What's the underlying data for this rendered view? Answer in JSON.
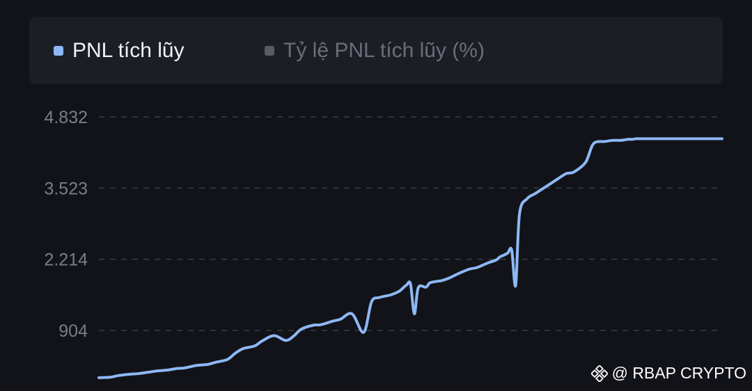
{
  "legend": {
    "items": [
      {
        "label": "PNL tích lũy",
        "active": true,
        "color": "#8db8f5"
      },
      {
        "label": "Tỷ lệ PNL tích lũy (%)",
        "active": false,
        "color": "#5a5c64"
      }
    ]
  },
  "chart_data": {
    "type": "line",
    "title": "",
    "xlabel": "",
    "ylabel": "",
    "y_ticks": [
      {
        "label": "4.832",
        "value": 4832
      },
      {
        "label": "3.523",
        "value": 3523
      },
      {
        "label": "2.214",
        "value": 2214
      },
      {
        "label": "904",
        "value": 904
      }
    ],
    "ylim": [
      0,
      4832
    ],
    "grid": true,
    "legend_position": "top-left",
    "series": [
      {
        "name": "PNL tích lũy",
        "color": "#8db8f5",
        "x": [
          0,
          3,
          5,
          8,
          10,
          13,
          15,
          18,
          20,
          22,
          25,
          28,
          30,
          33,
          35,
          37,
          40,
          42,
          45,
          48,
          50,
          52,
          55,
          57,
          60,
          62,
          65,
          68,
          70,
          72,
          75,
          77,
          78,
          79,
          80,
          81,
          82,
          84,
          85,
          87,
          88,
          90,
          92,
          95,
          97,
          100,
          102,
          103,
          104,
          105,
          106,
          107,
          108,
          110,
          112,
          115,
          118,
          120,
          122,
          125,
          127,
          130,
          132,
          134,
          135,
          136,
          137,
          138,
          139,
          140,
          141,
          142,
          144,
          146,
          148,
          150,
          152,
          154,
          155,
          156,
          157,
          159,
          160
        ],
        "values": [
          35,
          45,
          75,
          100,
          110,
          140,
          160,
          180,
          205,
          215,
          260,
          280,
          320,
          370,
          485,
          570,
          620,
          715,
          810,
          720,
          800,
          930,
          1000,
          1010,
          1075,
          1110,
          1210,
          870,
          1430,
          1510,
          1560,
          1620,
          1680,
          1740,
          1760,
          1210,
          1690,
          1700,
          1780,
          1810,
          1820,
          1870,
          1940,
          2030,
          2060,
          2150,
          2200,
          2260,
          2290,
          2330,
          2380,
          1730,
          3050,
          3330,
          3420,
          3560,
          3700,
          3790,
          3820,
          4000,
          4340,
          4380,
          4400,
          4400,
          4410,
          4420,
          4420,
          4430,
          4430,
          4430,
          4430,
          4430,
          4430,
          4430,
          4430,
          4430,
          4430,
          4430,
          4430,
          4430,
          4430,
          4430,
          4430
        ]
      }
    ]
  },
  "watermark": {
    "text": "@ RBAP CRYPTO",
    "icon": "binance-logo-icon"
  }
}
